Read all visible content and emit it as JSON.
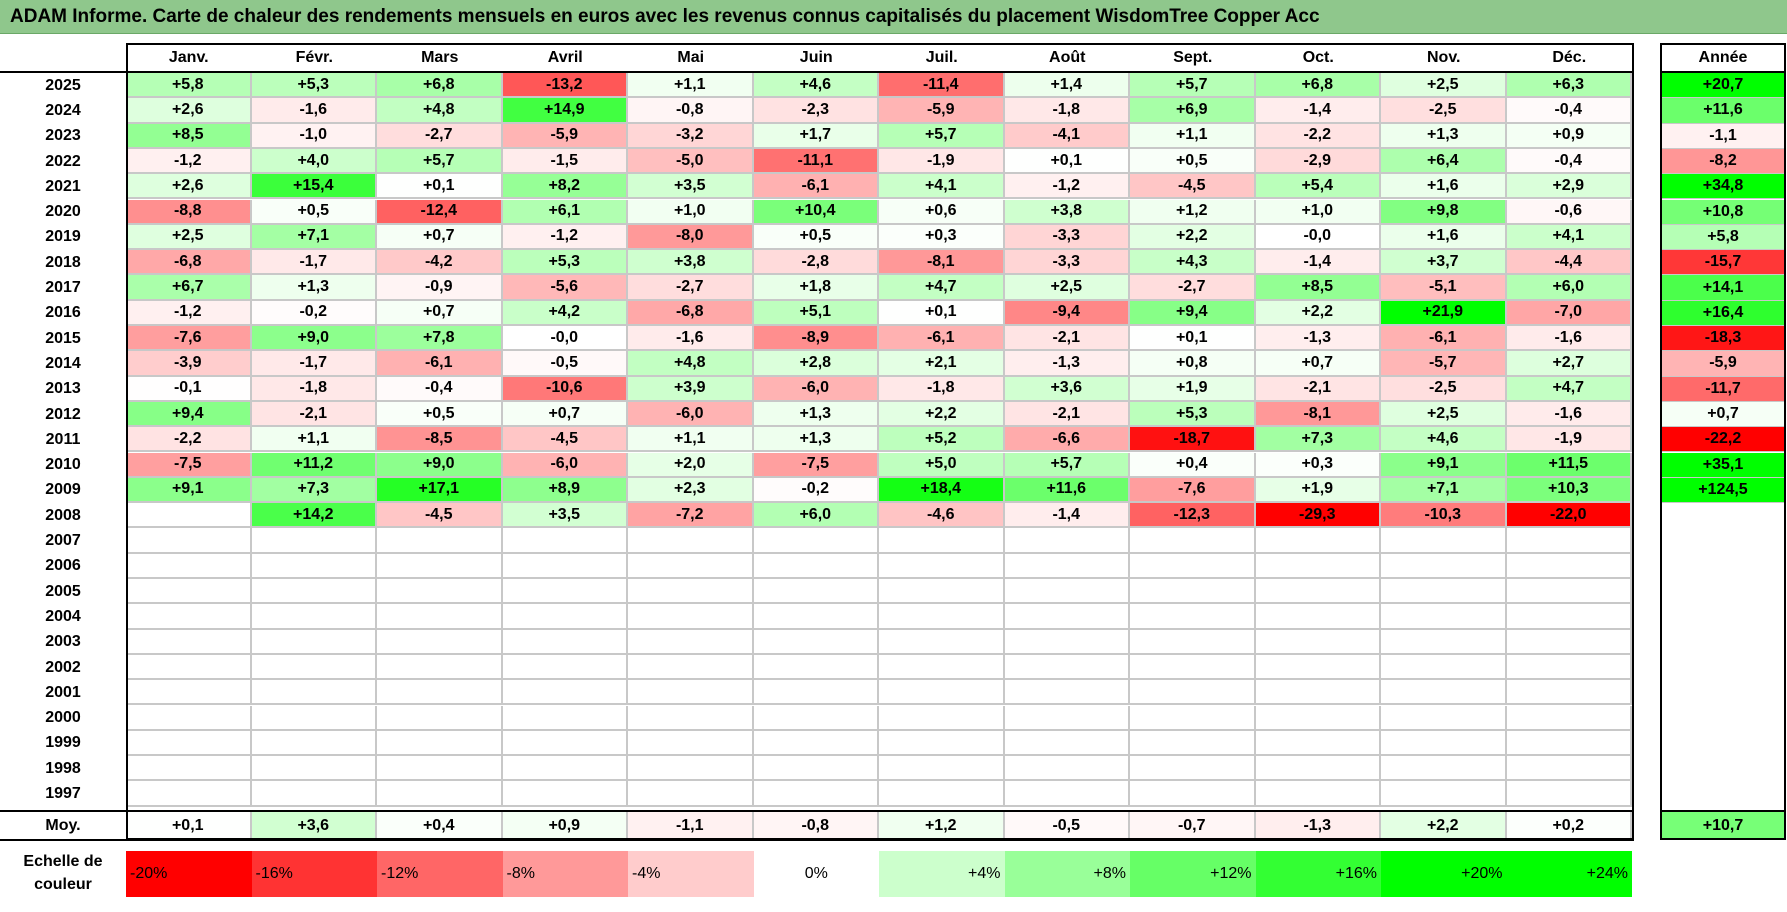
{
  "title": "ADAM Informe. Carte de chaleur des rendements mensuels en euros avec les revenus connus capitalisés du placement WisdomTree Copper Acc",
  "chart_data": {
    "type": "heatmap",
    "title": "ADAM Informe. Carte de chaleur des rendements mensuels en euros avec les revenus connus capitalisés du placement WisdomTree Copper Acc",
    "months": [
      "Janv.",
      "Févr.",
      "Mars",
      "Avril",
      "Mai",
      "Juin",
      "Juil.",
      "Août",
      "Sept.",
      "Oct.",
      "Nov.",
      "Déc."
    ],
    "year_header": "Année",
    "rows": [
      {
        "year": "2025",
        "values": [
          "+5,8",
          "+5,3",
          "+6,8",
          "-13,2",
          "+1,1",
          "+4,6",
          "-11,4",
          "+1,4",
          "+5,7",
          "+6,8",
          "+2,5",
          "+6,3"
        ],
        "annual": "+20,7"
      },
      {
        "year": "2024",
        "values": [
          "+2,6",
          "-1,6",
          "+4,8",
          "+14,9",
          "-0,8",
          "-2,3",
          "-5,9",
          "-1,8",
          "+6,9",
          "-1,4",
          "-2,5",
          "-0,4"
        ],
        "annual": "+11,6"
      },
      {
        "year": "2023",
        "values": [
          "+8,5",
          "-1,0",
          "-2,7",
          "-5,9",
          "-3,2",
          "+1,7",
          "+5,7",
          "-4,1",
          "+1,1",
          "-2,2",
          "+1,3",
          "+0,9"
        ],
        "annual": "-1,1"
      },
      {
        "year": "2022",
        "values": [
          "-1,2",
          "+4,0",
          "+5,7",
          "-1,5",
          "-5,0",
          "-11,1",
          "-1,9",
          "+0,1",
          "+0,5",
          "-2,9",
          "+6,4",
          "-0,4"
        ],
        "annual": "-8,2"
      },
      {
        "year": "2021",
        "values": [
          "+2,6",
          "+15,4",
          "+0,1",
          "+8,2",
          "+3,5",
          "-6,1",
          "+4,1",
          "-1,2",
          "-4,5",
          "+5,4",
          "+1,6",
          "+2,9"
        ],
        "annual": "+34,8"
      },
      {
        "year": "2020",
        "values": [
          "-8,8",
          "+0,5",
          "-12,4",
          "+6,1",
          "+1,0",
          "+10,4",
          "+0,6",
          "+3,8",
          "+1,2",
          "+1,0",
          "+9,8",
          "-0,6"
        ],
        "annual": "+10,8"
      },
      {
        "year": "2019",
        "values": [
          "+2,5",
          "+7,1",
          "+0,7",
          "-1,2",
          "-8,0",
          "+0,5",
          "+0,3",
          "-3,3",
          "+2,2",
          "-0,0",
          "+1,6",
          "+4,1"
        ],
        "annual": "+5,8"
      },
      {
        "year": "2018",
        "values": [
          "-6,8",
          "-1,7",
          "-4,2",
          "+5,3",
          "+3,8",
          "-2,8",
          "-8,1",
          "-3,3",
          "+4,3",
          "-1,4",
          "+3,7",
          "-4,4"
        ],
        "annual": "-15,7"
      },
      {
        "year": "2017",
        "values": [
          "+6,7",
          "+1,3",
          "-0,9",
          "-5,6",
          "-2,7",
          "+1,8",
          "+4,7",
          "+2,5",
          "-2,7",
          "+8,5",
          "-5,1",
          "+6,0"
        ],
        "annual": "+14,1"
      },
      {
        "year": "2016",
        "values": [
          "-1,2",
          "-0,2",
          "+0,7",
          "+4,2",
          "-6,8",
          "+5,1",
          "+0,1",
          "-9,4",
          "+9,4",
          "+2,2",
          "+21,9",
          "-7,0"
        ],
        "annual": "+16,4"
      },
      {
        "year": "2015",
        "values": [
          "-7,6",
          "+9,0",
          "+7,8",
          "-0,0",
          "-1,6",
          "-8,9",
          "-6,1",
          "-2,1",
          "+0,1",
          "-1,3",
          "-6,1",
          "-1,6"
        ],
        "annual": "-18,3"
      },
      {
        "year": "2014",
        "values": [
          "-3,9",
          "-1,7",
          "-6,1",
          "-0,5",
          "+4,8",
          "+2,8",
          "+2,1",
          "-1,3",
          "+0,8",
          "+0,7",
          "-5,7",
          "+2,7"
        ],
        "annual": "-5,9"
      },
      {
        "year": "2013",
        "values": [
          "-0,1",
          "-1,8",
          "-0,4",
          "-10,6",
          "+3,9",
          "-6,0",
          "-1,8",
          "+3,6",
          "+1,9",
          "-2,1",
          "-2,5",
          "+4,7"
        ],
        "annual": "-11,7"
      },
      {
        "year": "2012",
        "values": [
          "+9,4",
          "-2,1",
          "+0,5",
          "+0,7",
          "-6,0",
          "+1,3",
          "+2,2",
          "-2,1",
          "+5,3",
          "-8,1",
          "+2,5",
          "-1,6"
        ],
        "annual": "+0,7"
      },
      {
        "year": "2011",
        "values": [
          "-2,2",
          "+1,1",
          "-8,5",
          "-4,5",
          "+1,1",
          "+1,3",
          "+5,2",
          "-6,6",
          "-18,7",
          "+7,3",
          "+4,6",
          "-1,9"
        ],
        "annual": "-22,2"
      },
      {
        "year": "2010",
        "values": [
          "-7,5",
          "+11,2",
          "+9,0",
          "-6,0",
          "+2,0",
          "-7,5",
          "+5,0",
          "+5,7",
          "+0,4",
          "+0,3",
          "+9,1",
          "+11,5"
        ],
        "annual": "+35,1"
      },
      {
        "year": "2009",
        "values": [
          "+9,1",
          "+7,3",
          "+17,1",
          "+8,9",
          "+2,3",
          "-0,2",
          "+18,4",
          "+11,6",
          "-7,6",
          "+1,9",
          "+7,1",
          "+10,3"
        ],
        "annual": "+124,5"
      },
      {
        "year": "2008",
        "values": [
          "",
          "+14,2",
          "-4,5",
          "+3,5",
          "-7,2",
          "+6,0",
          "-4,6",
          "-1,4",
          "-12,3",
          "-29,3",
          "-10,3",
          "-22,0"
        ],
        "annual": ""
      },
      {
        "year": "2007",
        "values": [
          "",
          "",
          "",
          "",
          "",
          "",
          "",
          "",
          "",
          "",
          "",
          ""
        ],
        "annual": ""
      },
      {
        "year": "2006",
        "values": [
          "",
          "",
          "",
          "",
          "",
          "",
          "",
          "",
          "",
          "",
          "",
          ""
        ],
        "annual": ""
      },
      {
        "year": "2005",
        "values": [
          "",
          "",
          "",
          "",
          "",
          "",
          "",
          "",
          "",
          "",
          "",
          ""
        ],
        "annual": ""
      },
      {
        "year": "2004",
        "values": [
          "",
          "",
          "",
          "",
          "",
          "",
          "",
          "",
          "",
          "",
          "",
          ""
        ],
        "annual": ""
      },
      {
        "year": "2003",
        "values": [
          "",
          "",
          "",
          "",
          "",
          "",
          "",
          "",
          "",
          "",
          "",
          ""
        ],
        "annual": ""
      },
      {
        "year": "2002",
        "values": [
          "",
          "",
          "",
          "",
          "",
          "",
          "",
          "",
          "",
          "",
          "",
          ""
        ],
        "annual": ""
      },
      {
        "year": "2001",
        "values": [
          "",
          "",
          "",
          "",
          "",
          "",
          "",
          "",
          "",
          "",
          "",
          ""
        ],
        "annual": ""
      },
      {
        "year": "2000",
        "values": [
          "",
          "",
          "",
          "",
          "",
          "",
          "",
          "",
          "",
          "",
          "",
          ""
        ],
        "annual": ""
      },
      {
        "year": "1999",
        "values": [
          "",
          "",
          "",
          "",
          "",
          "",
          "",
          "",
          "",
          "",
          "",
          ""
        ],
        "annual": ""
      },
      {
        "year": "1998",
        "values": [
          "",
          "",
          "",
          "",
          "",
          "",
          "",
          "",
          "",
          "",
          "",
          ""
        ],
        "annual": ""
      },
      {
        "year": "1997",
        "values": [
          "",
          "",
          "",
          "",
          "",
          "",
          "",
          "",
          "",
          "",
          "",
          ""
        ],
        "annual": ""
      }
    ],
    "average": {
      "label": "Moy.",
      "values": [
        "+0,1",
        "+3,6",
        "+0,4",
        "+0,9",
        "-1,1",
        "-0,8",
        "+1,2",
        "-0,5",
        "-0,7",
        "-1,3",
        "+2,2",
        "+0,2"
      ],
      "annual": "+10,7"
    },
    "color_scale": {
      "label": "Echelle de couleur",
      "steps": [
        {
          "label": "-20%",
          "value": -20,
          "color": "#ff0000"
        },
        {
          "label": "-16%",
          "value": -16,
          "color": "#ff3333"
        },
        {
          "label": "-12%",
          "value": -12,
          "color": "#ff6666"
        },
        {
          "label": "-8%",
          "value": -8,
          "color": "#ff9999"
        },
        {
          "label": "-4%",
          "value": -4,
          "color": "#ffcccc"
        },
        {
          "label": "0%",
          "value": 0,
          "color": "#ffffff"
        },
        {
          "label": "+4%",
          "value": 4,
          "color": "#ccffcc"
        },
        {
          "label": "+8%",
          "value": 8,
          "color": "#99ff99"
        },
        {
          "label": "+12%",
          "value": 12,
          "color": "#66ff66"
        },
        {
          "label": "+16%",
          "value": 16,
          "color": "#33ff33"
        },
        {
          "label": "+20%",
          "value": 20,
          "color": "#00ff00"
        },
        {
          "label": "+24%",
          "value": 24,
          "color": "#00ff00"
        }
      ]
    }
  }
}
